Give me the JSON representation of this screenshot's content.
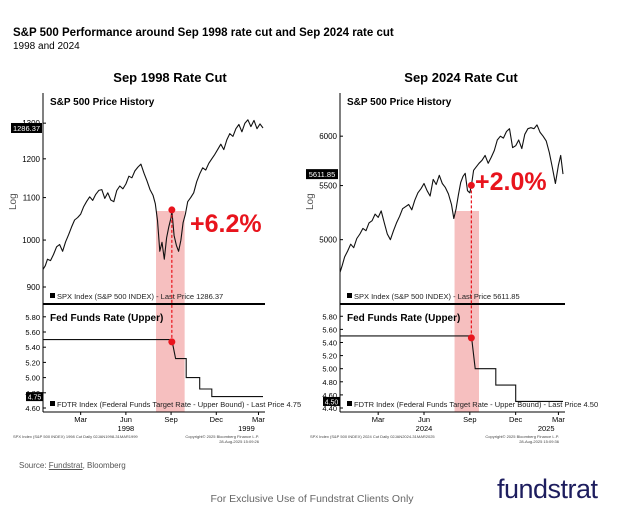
{
  "header": {
    "title": "S&P 500 Performance around Sep 1998 rate cut and Sep 2024 rate cut",
    "subtitle": "1998 and 2024"
  },
  "source": {
    "prefix": "Source: ",
    "name": "Fundstrat",
    "suffix": ", Bloomberg"
  },
  "footer": {
    "text": "For Exclusive Use of Fundstrat Clients Only"
  },
  "brand": {
    "logo_text": "fundstrat",
    "color": "#1d1d5e"
  },
  "colors": {
    "highlight": "#f4b4b4",
    "marker": "#e8141d",
    "annotation": "#e8141d"
  },
  "chart_data": [
    {
      "type": "line",
      "title": "Sep 1998 Rate Cut",
      "top_panel": {
        "title": "S&P 500 Price History",
        "ylabel": "Log",
        "scale": "log",
        "ylim": [
          900,
          1330
        ],
        "yticks": [
          900,
          1000,
          1100,
          1200,
          1300
        ],
        "ytick_labels": [
          "900",
          "1000",
          "1100",
          "1200",
          "1300"
        ],
        "last_value_label": "1286.37",
        "legend": "SPX Index (S&P 500 INDEX) - Last Price 1286.37",
        "annotation": "+6.2%",
        "marker": {
          "month": 8.55,
          "value": 1070
        },
        "series": [
          {
            "x": [
              0,
              0.15,
              0.3,
              0.5,
              0.7,
              0.9,
              1.1,
              1.3,
              1.5,
              1.7,
              1.9,
              2.1,
              2.3,
              2.5,
              2.7,
              2.9,
              3.1,
              3.3,
              3.5,
              3.7,
              3.9,
              4.1,
              4.3,
              4.5,
              4.7,
              4.9,
              5.1,
              5.3,
              5.5,
              5.7,
              5.9,
              6.1,
              6.3,
              6.5,
              6.7,
              6.9,
              7.1,
              7.3,
              7.45,
              7.6,
              7.75,
              7.9,
              8.05,
              8.2,
              8.35,
              8.5,
              8.55,
              8.7,
              8.85,
              9.0,
              9.15,
              9.3,
              9.45,
              9.6,
              9.8,
              10.0,
              10.2,
              10.4,
              10.6,
              10.8,
              11.0,
              11.2,
              11.4,
              11.6,
              11.8,
              12.0,
              12.2,
              12.4,
              12.6,
              12.8,
              13.0,
              13.2,
              13.4,
              13.6,
              13.8,
              14.0,
              14.2,
              14.4,
              14.6
            ],
            "values": [
              936,
              944,
              958,
              955,
              968,
              985,
              990,
              975,
              996,
              1012,
              1030,
              1046,
              1052,
              1060,
              1078,
              1091,
              1102,
              1093,
              1108,
              1118,
              1120,
              1098,
              1112,
              1094,
              1090,
              1118,
              1129,
              1122,
              1134,
              1154,
              1150,
              1168,
              1178,
              1186,
              1162,
              1142,
              1120,
              1106,
              1085,
              1045,
              975,
              995,
              958,
              1005,
              1030,
              1052,
              1070,
              1010,
              988,
              975,
              1000,
              1040,
              1060,
              1090,
              1100,
              1112,
              1140,
              1160,
              1176,
              1170,
              1188,
              1200,
              1212,
              1226,
              1240,
              1225,
              1252,
              1270,
              1262,
              1284,
              1296,
              1275,
              1300,
              1310,
              1290,
              1308,
              1284,
              1298,
              1286
            ]
          }
        ]
      },
      "bottom_panel": {
        "title": "Fed Funds Rate (Upper)",
        "ylim": [
          4.6,
          5.85
        ],
        "yticks": [
          4.6,
          4.8,
          5.0,
          5.2,
          5.4,
          5.6,
          5.8
        ],
        "ytick_labels": [
          "4.60",
          "4.80",
          "5.00",
          "5.20",
          "5.40",
          "5.60",
          "5.80"
        ],
        "last_value_label": "4.75",
        "legend": "FDTR Index (Federal Funds Target Rate - Upper Bound) - Last Price 4.75",
        "marker": {
          "month": 8.55,
          "value": 5.47
        },
        "series": [
          {
            "x": [
              0,
              8.55,
              8.8,
              9.5,
              9.5,
              10.4,
              10.4,
              11.2,
              11.2,
              14.6
            ],
            "values": [
              5.5,
              5.5,
              5.25,
              5.25,
              5.0,
              5.0,
              4.85,
              4.85,
              4.75,
              4.75
            ]
          }
        ]
      },
      "xaxis": {
        "range": [
          0,
          14.6
        ],
        "ticks": [
          {
            "month": 2.5,
            "label": "Mar"
          },
          {
            "month": 5.5,
            "label": "Jun"
          },
          {
            "month": 8.5,
            "label": "Sep"
          },
          {
            "month": 11.5,
            "label": "Dec"
          },
          {
            "month": 14.3,
            "label": "Mar"
          }
        ],
        "years": [
          {
            "month": 5.5,
            "label": "1998"
          },
          {
            "month": 13.5,
            "label": "1999"
          }
        ]
      },
      "highlight": {
        "from_month": 7.5,
        "to_month": 9.4
      },
      "footnote_left": "SPX Index (S&P 500 INDEX) 1998 Cut  Daily 02JAN1998-31MAR1999",
      "footnote_right_1": "Copyright© 2025 Bloomberg Finance L.P.",
      "footnote_right_2": "28-Aug-2025 15:09:26"
    },
    {
      "type": "line",
      "title": "Sep 2024 Rate Cut",
      "top_panel": {
        "title": "S&P 500 Price History",
        "ylabel": "Log",
        "scale": "log",
        "ylim": [
          4600,
          6250
        ],
        "yticks": [
          5000,
          5500,
          6000
        ],
        "ytick_labels": [
          "5000",
          "5500",
          "6000"
        ],
        "last_value_label": "5611.85",
        "legend": "SPX Index (S&P 500 INDEX) - Last Price 5611.85",
        "annotation": "+2.0%",
        "marker": {
          "month": 8.6,
          "value": 5502
        },
        "series": [
          {
            "x": [
              0,
              0.15,
              0.3,
              0.5,
              0.7,
              0.9,
              1.1,
              1.3,
              1.5,
              1.7,
              1.9,
              2.1,
              2.3,
              2.5,
              2.7,
              2.9,
              3.1,
              3.3,
              3.5,
              3.7,
              3.9,
              4.1,
              4.3,
              4.5,
              4.7,
              4.9,
              5.1,
              5.3,
              5.5,
              5.7,
              5.9,
              6.1,
              6.3,
              6.5,
              6.7,
              6.9,
              7.1,
              7.3,
              7.45,
              7.6,
              7.75,
              7.9,
              8.05,
              8.2,
              8.35,
              8.5,
              8.6,
              8.75,
              8.9,
              9.1,
              9.3,
              9.5,
              9.7,
              9.9,
              10.1,
              10.3,
              10.5,
              10.7,
              10.9,
              11.1,
              11.3,
              11.5,
              11.7,
              11.9,
              12.1,
              12.3,
              12.5,
              12.7,
              12.9,
              13.1,
              13.3,
              13.5,
              13.7,
              13.9,
              14.1,
              14.3,
              14.45,
              14.6
            ],
            "values": [
              4720,
              4780,
              4850,
              4900,
              4960,
              4930,
              5010,
              5050,
              5100,
              5080,
              5150,
              5170,
              5230,
              5200,
              5260,
              5150,
              5050,
              5000,
              5080,
              5150,
              5210,
              5280,
              5300,
              5320,
              5270,
              5360,
              5430,
              5470,
              5520,
              5450,
              5400,
              5560,
              5510,
              5600,
              5520,
              5480,
              5420,
              5320,
              5190,
              5280,
              5410,
              5530,
              5590,
              5620,
              5450,
              5430,
              5502,
              5650,
              5680,
              5720,
              5750,
              5800,
              5720,
              5780,
              5850,
              5960,
              6000,
              5980,
              6050,
              6080,
              5880,
              5900,
              5960,
              5870,
              6020,
              6080,
              6090,
              6080,
              6120,
              6040,
              6000,
              5950,
              5830,
              5680,
              5520,
              5700,
              5800,
              5612
            ]
          }
        ]
      },
      "bottom_panel": {
        "title": "Fed Funds Rate (Upper)",
        "ylim": [
          4.4,
          5.85
        ],
        "yticks": [
          4.4,
          4.6,
          4.8,
          5.0,
          5.2,
          5.4,
          5.6,
          5.8
        ],
        "ytick_labels": [
          "4.40",
          "4.60",
          "4.80",
          "5.00",
          "5.20",
          "5.40",
          "5.60",
          "5.80"
        ],
        "last_value_label": "4.50",
        "legend": "FDTR Index (Federal Funds Target Rate - Upper Bound) - Last Price 4.50",
        "marker": {
          "month": 8.6,
          "value": 5.47
        },
        "series": [
          {
            "x": [
              0,
              8.6,
              8.85,
              10.2,
              10.2,
              11.5,
              11.5,
              14.6
            ],
            "values": [
              5.5,
              5.5,
              5.0,
              5.0,
              4.75,
              4.75,
              4.5,
              4.5
            ]
          }
        ]
      },
      "xaxis": {
        "range": [
          0,
          14.6
        ],
        "ticks": [
          {
            "month": 2.5,
            "label": "Mar"
          },
          {
            "month": 5.5,
            "label": "Jun"
          },
          {
            "month": 8.5,
            "label": "Sep"
          },
          {
            "month": 11.5,
            "label": "Dec"
          },
          {
            "month": 14.3,
            "label": "Mar"
          }
        ],
        "years": [
          {
            "month": 5.5,
            "label": "2024"
          },
          {
            "month": 13.5,
            "label": "2025"
          }
        ]
      },
      "highlight": {
        "from_month": 7.5,
        "to_month": 9.1
      },
      "footnote_left": "SPX Index (S&P 500 INDEX) 2024 Cut  Daily 02JAN2024-31MAR2025",
      "footnote_right_1": "Copyright© 2025 Bloomberg Finance L.P.",
      "footnote_right_2": "28-Aug-2025 15:09:36"
    }
  ]
}
